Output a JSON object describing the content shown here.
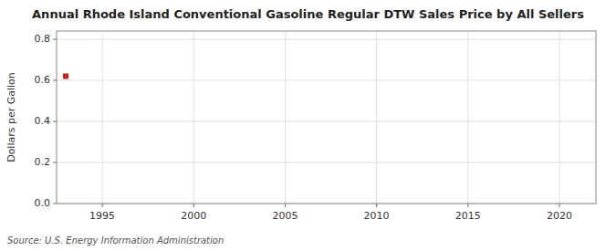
{
  "chart_data": {
    "type": "scatter",
    "title": "Annual Rhode Island Conventional Gasoline Regular DTW Sales Price by All Sellers",
    "y_label": "Dollars per Gallon",
    "annotations": [
      "Source: U.S. Energy Information Administration"
    ],
    "x": [
      1993
    ],
    "values": [
      0.62
    ],
    "color": "#cc2222",
    "marker": "square",
    "xlim": [
      1992.5,
      2022
    ],
    "ylim": [
      0.0,
      0.84
    ],
    "xticks": [
      1995,
      2000,
      2005,
      2010,
      2015,
      2020
    ],
    "yticks": [
      {
        "value": 0,
        "label": "0.0"
      },
      0.2,
      0.4,
      0.6,
      0.8
    ],
    "grid": true
  }
}
